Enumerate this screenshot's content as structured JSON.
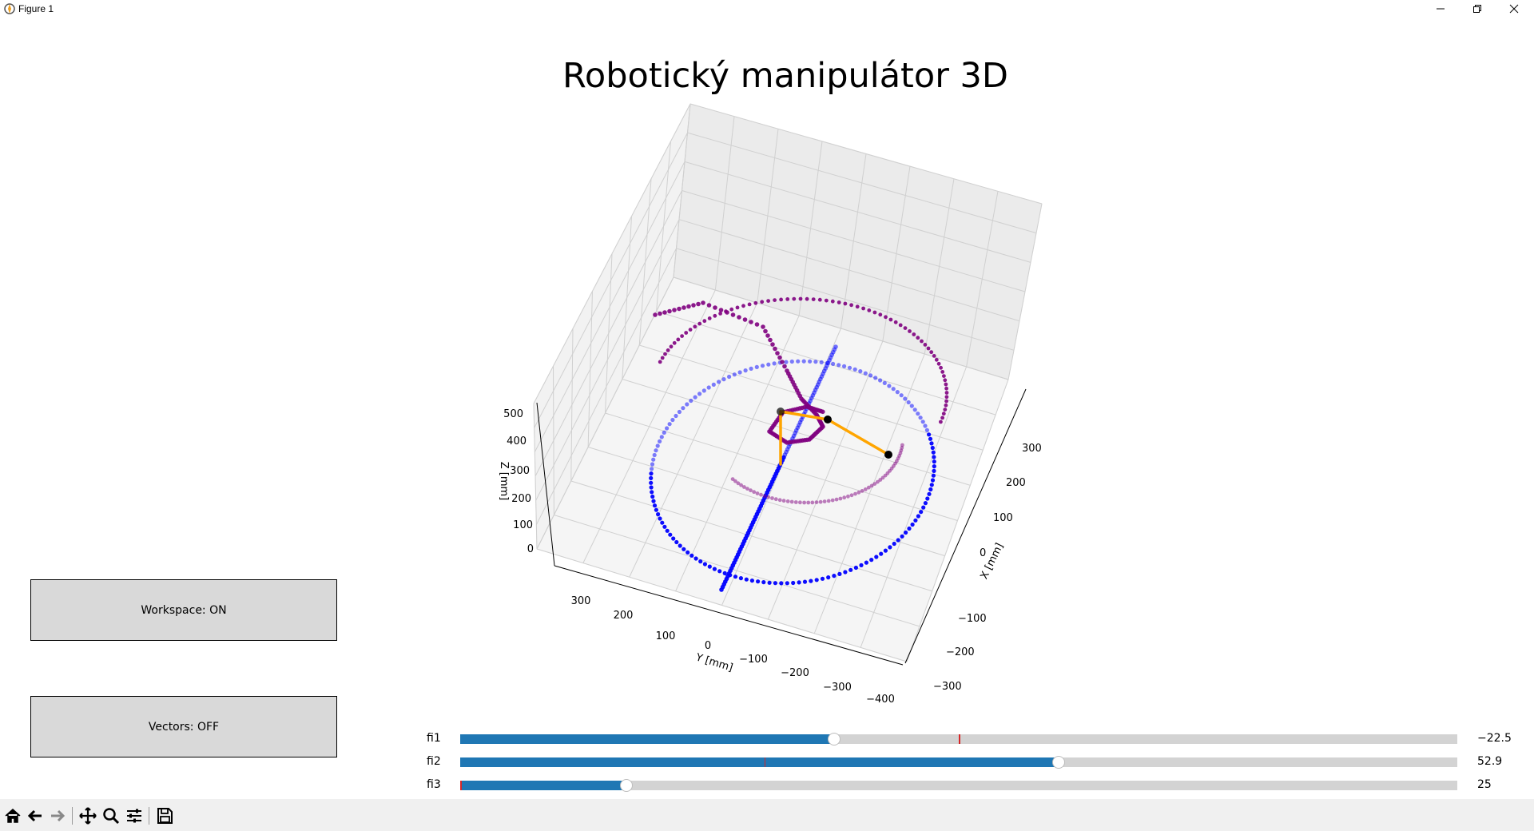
{
  "window": {
    "title": "Figure 1",
    "controls": [
      "minimize-icon",
      "restore-icon",
      "close-icon"
    ]
  },
  "figure": {
    "title": "Robotický manipulátor 3D"
  },
  "buttons": {
    "workspace_label": "Workspace: ON",
    "vectors_label": "Vectors: OFF"
  },
  "sliders": [
    {
      "label": "fi1",
      "value_text": "−22.5",
      "fraction": 0.375,
      "init_fraction": 0.5
    },
    {
      "label": "fi2",
      "value_text": "52.9",
      "fraction": 0.6,
      "init_fraction": 0.305
    },
    {
      "label": "fi3",
      "value_text": "25",
      "fraction": 0.167,
      "init_fraction": 0.0
    }
  ],
  "toolbar": {
    "items": [
      "home-icon",
      "back-icon",
      "forward-icon",
      "pan-icon",
      "zoom-icon",
      "configure-subplots-icon",
      "save-icon"
    ]
  },
  "chart_data": {
    "type": "scatter3d",
    "title": "",
    "xlabel": "X [mm]",
    "ylabel": "Y [mm]",
    "zlabel": "Z [mm]",
    "x_ticks": [
      "−300",
      "−200",
      "−100",
      "0",
      "100",
      "200",
      "300"
    ],
    "y_ticks": [
      "−400",
      "−300",
      "−200",
      "−100",
      "0",
      "100",
      "200",
      "300"
    ],
    "z_ticks": [
      "0",
      "100",
      "200",
      "300",
      "400",
      "500"
    ],
    "grid": true,
    "colors": {
      "workspace_base": "#0000ff",
      "workspace_arc": "#800080",
      "arm": "#ffa500",
      "joint": "#000000"
    },
    "series": [
      {
        "name": "",
        "kind": "workspace circle",
        "color": "#0000ff"
      },
      {
        "name": "",
        "kind": "workspace line",
        "color": "#0000ff"
      },
      {
        "name": "",
        "kind": "workspace arc",
        "color": "#800080"
      },
      {
        "name": "",
        "kind": "arm links",
        "color": "#ffa500"
      }
    ]
  }
}
